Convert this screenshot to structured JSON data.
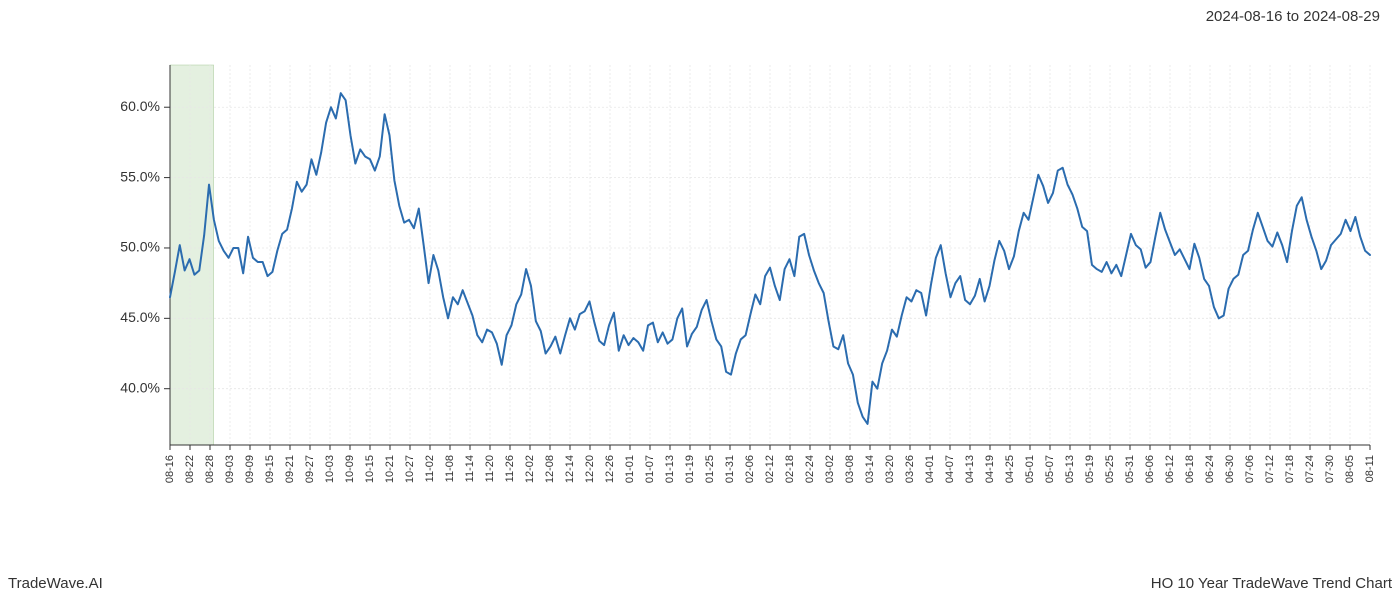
{
  "header": {
    "date_range": "2024-08-16 to 2024-08-29"
  },
  "footer": {
    "left": "TradeWave.AI",
    "right": "HO 10 Year TradeWave Trend Chart"
  },
  "chart": {
    "type": "line",
    "background_color": "#ffffff",
    "grid_color": "#e6e6e6",
    "axis_color": "#333333",
    "line_color": "#2b6caf",
    "line_width": 2,
    "highlight_band": {
      "start_label": "08-16",
      "end_label": "08-29",
      "fill_color": "#d9ead3",
      "fill_opacity": 0.7,
      "border_color": "#a8c99a"
    },
    "ylim": [
      36,
      63
    ],
    "y_ticks": [
      40.0,
      45.0,
      50.0,
      55.0,
      60.0
    ],
    "y_tick_labels": [
      "40.0%",
      "45.0%",
      "50.0%",
      "55.0%",
      "60.0%"
    ],
    "x_tick_labels": [
      "08-16",
      "08-22",
      "08-28",
      "09-03",
      "09-09",
      "09-15",
      "09-21",
      "09-27",
      "10-03",
      "10-09",
      "10-15",
      "10-21",
      "10-27",
      "11-02",
      "11-08",
      "11-14",
      "11-20",
      "11-26",
      "12-02",
      "12-08",
      "12-14",
      "12-20",
      "12-26",
      "01-01",
      "01-07",
      "01-13",
      "01-19",
      "01-25",
      "01-31",
      "02-06",
      "02-12",
      "02-18",
      "02-24",
      "03-02",
      "03-08",
      "03-14",
      "03-20",
      "03-26",
      "04-01",
      "04-07",
      "04-13",
      "04-19",
      "04-25",
      "05-01",
      "05-07",
      "05-13",
      "05-19",
      "05-25",
      "05-31",
      "06-06",
      "06-12",
      "06-18",
      "06-24",
      "06-30",
      "07-06",
      "07-12",
      "07-18",
      "07-24",
      "07-30",
      "08-05",
      "08-11"
    ],
    "values": [
      46.5,
      48.3,
      50.2,
      48.4,
      49.2,
      48.1,
      48.4,
      50.9,
      54.5,
      52.0,
      50.5,
      49.8,
      49.3,
      50.0,
      50.0,
      48.2,
      50.8,
      49.3,
      49.0,
      49.0,
      48.0,
      48.3,
      49.8,
      51.0,
      51.3,
      52.8,
      54.7,
      54.0,
      54.5,
      56.3,
      55.2,
      56.8,
      58.9,
      60.0,
      59.2,
      61.0,
      60.5,
      58.0,
      56.0,
      57.0,
      56.5,
      56.3,
      55.5,
      56.5,
      59.5,
      58.0,
      54.8,
      53.0,
      51.8,
      52.0,
      51.4,
      52.8,
      50.2,
      47.5,
      49.5,
      48.4,
      46.5,
      45.0,
      46.5,
      46.0,
      47.0,
      46.1,
      45.2,
      43.8,
      43.3,
      44.2,
      44.0,
      43.2,
      41.7,
      43.8,
      44.5,
      46.0,
      46.7,
      48.5,
      47.3,
      44.8,
      44.1,
      42.5,
      43.0,
      43.7,
      42.5,
      43.8,
      45.0,
      44.2,
      45.3,
      45.5,
      46.2,
      44.7,
      43.4,
      43.1,
      44.5,
      45.4,
      42.7,
      43.8,
      43.1,
      43.6,
      43.3,
      42.7,
      44.5,
      44.7,
      43.3,
      44.0,
      43.2,
      43.5,
      45.0,
      45.7,
      43.0,
      43.9,
      44.4,
      45.6,
      46.3,
      44.8,
      43.5,
      43.0,
      41.2,
      41.0,
      42.5,
      43.5,
      43.8,
      45.3,
      46.7,
      46.0,
      48.0,
      48.6,
      47.3,
      46.3,
      48.5,
      49.2,
      48.0,
      50.8,
      51.0,
      49.5,
      48.4,
      47.5,
      46.8,
      44.8,
      43.0,
      42.8,
      43.8,
      41.8,
      41.0,
      39.0,
      38.0,
      37.5,
      40.5,
      40.0,
      41.8,
      42.7,
      44.2,
      43.7,
      45.2,
      46.5,
      46.2,
      47.0,
      46.8,
      45.2,
      47.4,
      49.3,
      50.2,
      48.2,
      46.5,
      47.5,
      48.0,
      46.3,
      46.0,
      46.6,
      47.8,
      46.2,
      47.3,
      49.1,
      50.5,
      49.8,
      48.5,
      49.4,
      51.2,
      52.5,
      52.0,
      53.6,
      55.2,
      54.4,
      53.2,
      53.9,
      55.5,
      55.7,
      54.5,
      53.8,
      52.8,
      51.5,
      51.2,
      48.8,
      48.5,
      48.3,
      49.0,
      48.2,
      48.8,
      48.0,
      49.5,
      51.0,
      50.2,
      49.9,
      48.6,
      49.0,
      50.8,
      52.5,
      51.3,
      50.4,
      49.5,
      49.9,
      49.2,
      48.5,
      50.3,
      49.3,
      47.8,
      47.3,
      45.8,
      45.0,
      45.2,
      47.1,
      47.8,
      48.1,
      49.5,
      49.8,
      51.3,
      52.5,
      51.5,
      50.5,
      50.1,
      51.1,
      50.2,
      49.0,
      51.2,
      53.0,
      53.6,
      52.0,
      50.8,
      49.8,
      48.5,
      49.1,
      50.2,
      50.6,
      51.0,
      52.0,
      51.2,
      52.2,
      50.8,
      49.8,
      49.5
    ]
  }
}
